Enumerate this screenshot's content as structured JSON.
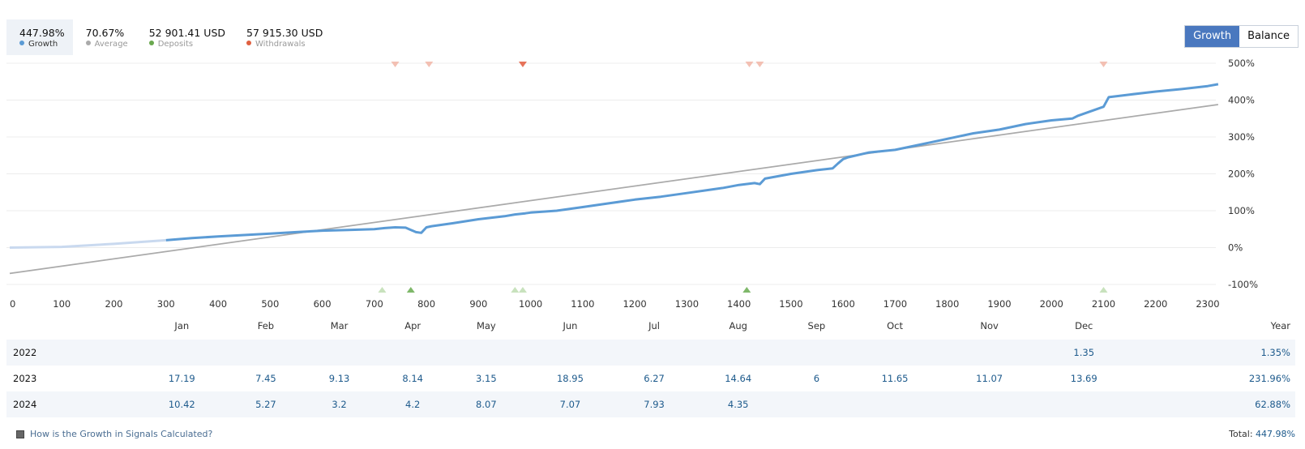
{
  "stats": [
    {
      "value": "447.98%",
      "label": "Growth",
      "color": "#5b9bd5"
    },
    {
      "value": "70.67%",
      "label": "Average",
      "color": "#aaaaaa"
    },
    {
      "value": "52 901.41 USD",
      "label": "Deposits",
      "color": "#6aa84f"
    },
    {
      "value": "57 915.30 USD",
      "label": "Withdrawals",
      "color": "#e06040"
    }
  ],
  "toggle": {
    "growth": "Growth",
    "balance": "Balance"
  },
  "chart_data": {
    "type": "line",
    "x_ticks": [
      0,
      100,
      200,
      300,
      400,
      500,
      600,
      700,
      800,
      900,
      1000,
      1100,
      1200,
      1300,
      1400,
      1500,
      1600,
      1700,
      1800,
      1900,
      2000,
      2100,
      2200,
      2300
    ],
    "y_ticks": [
      "500%",
      "400%",
      "300%",
      "200%",
      "100%",
      "0%",
      "-100%"
    ],
    "y_tick_values": [
      500,
      400,
      300,
      200,
      100,
      0,
      -100
    ],
    "xlim": [
      0,
      2330
    ],
    "ylim": [
      -110,
      510
    ],
    "series": [
      {
        "name": "Growth",
        "color": "#5b9bd5",
        "x": [
          0,
          100,
          200,
          300,
          350,
          400,
          450,
          500,
          550,
          600,
          650,
          700,
          720,
          740,
          760,
          780,
          790,
          800,
          810,
          850,
          900,
          950,
          970,
          990,
          1000,
          1050,
          1100,
          1150,
          1200,
          1250,
          1300,
          1350,
          1370,
          1400,
          1430,
          1440,
          1450,
          1500,
          1550,
          1580,
          1590,
          1600,
          1610,
          1650,
          1700,
          1750,
          1800,
          1850,
          1900,
          1950,
          2000,
          2040,
          2050,
          2100,
          2110,
          2150,
          2200,
          2250,
          2300,
          2320
        ],
        "y": [
          0,
          2,
          10,
          20,
          26,
          30,
          34,
          38,
          42,
          46,
          48,
          50,
          53,
          55,
          54,
          42,
          40,
          55,
          58,
          66,
          77,
          85,
          90,
          93,
          95,
          100,
          110,
          120,
          130,
          138,
          148,
          158,
          162,
          170,
          175,
          172,
          187,
          200,
          210,
          215,
          228,
          240,
          245,
          258,
          265,
          280,
          295,
          310,
          320,
          335,
          345,
          350,
          357,
          382,
          408,
          415,
          423,
          430,
          438,
          443
        ]
      },
      {
        "name": "Average",
        "color": "#aaaaaa",
        "x": [
          0,
          2320
        ],
        "y": [
          -70,
          388
        ]
      }
    ],
    "withdrawal_markers_x": [
      740,
      805,
      985,
      1420,
      1440,
      2100
    ],
    "deposit_markers_x": [
      715,
      770,
      970,
      985,
      1415,
      2100
    ]
  },
  "table": {
    "headers": [
      "",
      "Jan",
      "Feb",
      "Mar",
      "Apr",
      "May",
      "Jun",
      "Jul",
      "Aug",
      "Sep",
      "Oct",
      "Nov",
      "Dec",
      "Year"
    ],
    "rows": [
      {
        "year": "2022",
        "values": [
          "",
          "",
          "",
          "",
          "",
          "",
          "",
          "",
          "",
          "",
          "",
          "1.35"
        ],
        "total": "1.35%"
      },
      {
        "year": "2023",
        "values": [
          "17.19",
          "7.45",
          "9.13",
          "8.14",
          "3.15",
          "18.95",
          "6.27",
          "14.64",
          "6",
          "11.65",
          "11.07",
          "13.69"
        ],
        "total": "231.96%"
      },
      {
        "year": "2024",
        "values": [
          "10.42",
          "5.27",
          "3.2",
          "4.2",
          "8.07",
          "7.07",
          "7.93",
          "4.35",
          "",
          "",
          "",
          ""
        ],
        "total": "62.88%"
      }
    ]
  },
  "footer": {
    "help_text": "How is the Growth in Signals Calculated?",
    "total_label": "Total:",
    "total_value": "447.98%"
  }
}
